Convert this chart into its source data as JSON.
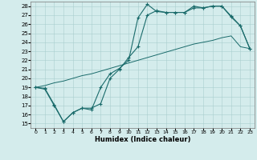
{
  "xlabel": "Humidex (Indice chaleur)",
  "bg_color": "#d4ecec",
  "grid_color": "#aacece",
  "line_color": "#1a6b6b",
  "xlim": [
    -0.5,
    23.5
  ],
  "ylim": [
    14.5,
    28.5
  ],
  "yticks": [
    15,
    16,
    17,
    18,
    19,
    20,
    21,
    22,
    23,
    24,
    25,
    26,
    27,
    28
  ],
  "xticks": [
    0,
    1,
    2,
    3,
    4,
    5,
    6,
    7,
    8,
    9,
    10,
    11,
    12,
    13,
    14,
    15,
    16,
    17,
    18,
    19,
    20,
    21,
    22,
    23
  ],
  "line1_x": [
    0,
    1,
    2,
    3,
    4,
    5,
    6,
    7,
    8,
    9,
    10,
    11,
    12,
    13,
    14,
    15,
    16,
    17,
    18,
    19,
    20,
    21,
    22,
    23
  ],
  "line1_y": [
    19.0,
    18.9,
    17.1,
    15.2,
    16.2,
    16.7,
    16.5,
    19.0,
    20.5,
    21.1,
    22.0,
    26.7,
    28.2,
    27.4,
    27.3,
    27.3,
    27.3,
    27.8,
    27.8,
    28.0,
    28.0,
    26.8,
    25.8,
    23.3
  ],
  "line2_x": [
    0,
    1,
    2,
    3,
    4,
    5,
    6,
    7,
    8,
    9,
    10,
    11,
    12,
    13,
    14,
    15,
    16,
    17,
    18,
    19,
    20,
    21,
    22,
    23
  ],
  "line2_y": [
    19.0,
    18.8,
    17.0,
    15.2,
    16.2,
    16.7,
    16.7,
    17.2,
    20.0,
    21.0,
    22.3,
    23.5,
    27.0,
    27.5,
    27.3,
    27.3,
    27.3,
    28.0,
    27.8,
    28.0,
    28.0,
    26.9,
    25.8,
    23.3
  ],
  "line3_x": [
    0,
    1,
    2,
    3,
    4,
    5,
    6,
    7,
    8,
    9,
    10,
    11,
    12,
    13,
    14,
    15,
    16,
    17,
    18,
    19,
    20,
    21,
    22,
    23
  ],
  "line3_y": [
    19.0,
    19.2,
    19.5,
    19.7,
    20.0,
    20.3,
    20.5,
    20.8,
    21.1,
    21.4,
    21.7,
    22.0,
    22.3,
    22.6,
    22.9,
    23.2,
    23.5,
    23.8,
    24.0,
    24.2,
    24.5,
    24.7,
    23.5,
    23.3
  ]
}
